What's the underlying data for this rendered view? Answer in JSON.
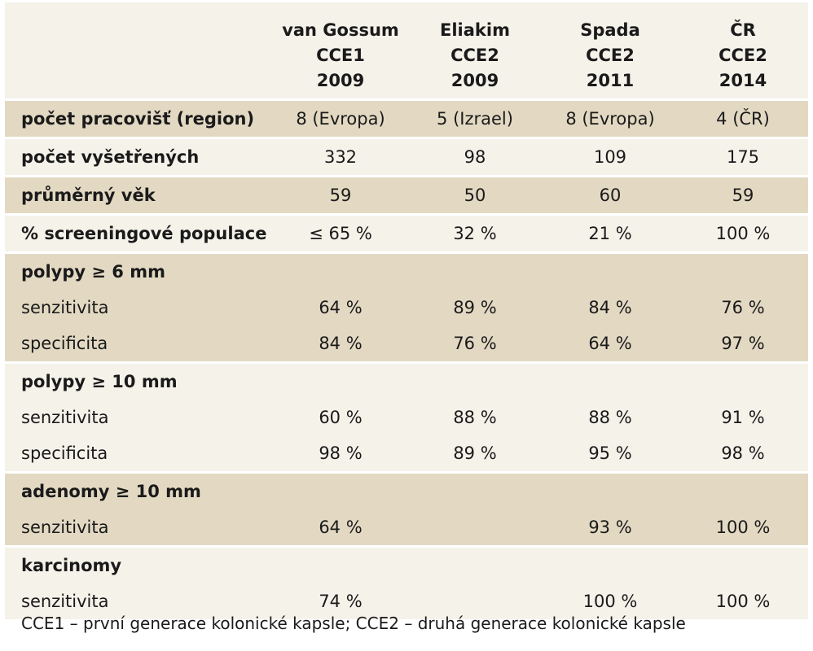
{
  "header": {
    "columns": [
      {
        "author": "van Gossum",
        "capsule": "CCE1",
        "year": "2009"
      },
      {
        "author": "Eliakim",
        "capsule": "CCE2",
        "year": "2009"
      },
      {
        "author": "Spada",
        "capsule": "CCE2",
        "year": "2011"
      },
      {
        "author": "ČR",
        "capsule": "CCE2",
        "year": "2014"
      }
    ]
  },
  "rows": {
    "sites": {
      "label": "počet pracovišť (region)",
      "values": [
        "8 (Evropa)",
        "5 (Izrael)",
        "8 (Evropa)",
        "4 (ČR)"
      ]
    },
    "examined": {
      "label": "počet vyšetřených",
      "values": [
        "332",
        "98",
        "109",
        "175"
      ]
    },
    "age": {
      "label": "průměrný věk",
      "values": [
        "59",
        "50",
        "60",
        "59"
      ]
    },
    "screening": {
      "label": "% screeningové populace",
      "values": [
        "≤ 65 %",
        "32 %",
        "21 %",
        "100 %"
      ]
    },
    "polyps6": {
      "label": "polypy ≥ 6 mm",
      "sensitivity": {
        "label": "senzitivita",
        "values": [
          "64 %",
          "89 %",
          "84 %",
          "76 %"
        ]
      },
      "specificity": {
        "label": "specificita",
        "values": [
          "84 %",
          "76 %",
          "64 %",
          "97 %"
        ]
      }
    },
    "polyps10": {
      "label": "polypy ≥ 10 mm",
      "sensitivity": {
        "label": "senzitivita",
        "values": [
          "60 %",
          "88 %",
          "88 %",
          "91 %"
        ]
      },
      "specificity": {
        "label": "specificita",
        "values": [
          "98 %",
          "89 %",
          "95 %",
          "98 %"
        ]
      }
    },
    "adenoma10": {
      "label": "adenomy ≥ 10 mm",
      "sensitivity": {
        "label": "senzitivita",
        "values": [
          "64 %",
          "",
          "93 %",
          "100 %"
        ]
      }
    },
    "carcinoma": {
      "label": "karcinomy",
      "sensitivity": {
        "label": "senzitivita",
        "values": [
          "74 %",
          "",
          "100 %",
          "100 %"
        ]
      }
    }
  },
  "footnote": "CCE1 – první generace kolonické kapsle; CCE2 – druhá generace kolonické kapsle"
}
